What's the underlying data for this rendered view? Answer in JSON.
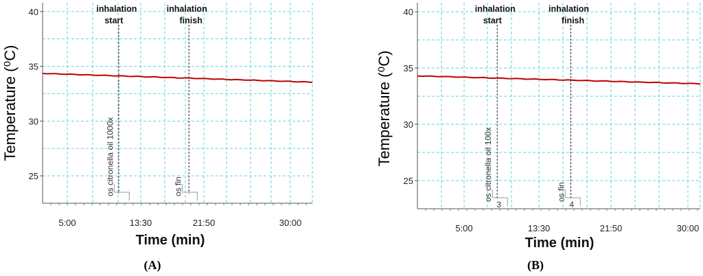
{
  "chart_data": [
    {
      "type": "line",
      "panel_label": "(A)",
      "xlabel": "Time (min)",
      "ylabel": "Temperature (⁰C)",
      "x_ticks": [
        "5:00",
        "13:30",
        "21:50",
        "30:00"
      ],
      "y_ticks": [
        25,
        30,
        35,
        40
      ],
      "ylim": [
        22.5,
        40.8
      ],
      "grid": true,
      "series": [
        {
          "color": "#c00000",
          "x_min": [
            0,
            36.5
          ],
          "y": [
            34.35,
            33.55
          ]
        }
      ],
      "annotations": [
        {
          "text_lines": [
            "inhalation",
            "start"
          ],
          "x_min": 10.3
        },
        {
          "text_lines": [
            "inhalation",
            "finish"
          ],
          "x_min": 19.8
        }
      ],
      "markers": [
        {
          "text": "os citronella oil 1000x",
          "x_min": 9.5
        },
        {
          "text": "os fin",
          "x_min": 18.7
        }
      ]
    },
    {
      "type": "line",
      "panel_label": "(B)",
      "xlabel": "Time (min)",
      "ylabel": "Temperature (⁰C)",
      "x_ticks": [
        "5:00",
        "13:30",
        "21:50",
        "30:00"
      ],
      "y_ticks": [
        25,
        30,
        35,
        40
      ],
      "ylim": [
        22.5,
        40.8
      ],
      "grid": true,
      "series": [
        {
          "color": "#c00000",
          "x_min": [
            0,
            36.5
          ],
          "y": [
            34.3,
            33.6
          ]
        }
      ],
      "annotations": [
        {
          "text_lines": [
            "inhalation",
            "start"
          ],
          "x_min": 10.3
        },
        {
          "text_lines": [
            "inhalation",
            "finish"
          ],
          "x_min": 19.8
        }
      ],
      "markers": [
        {
          "text": "os citronella oil 100x",
          "x_min": 9.5,
          "number": "3"
        },
        {
          "text": "os fin",
          "x_min": 18.9,
          "number": "4"
        }
      ]
    }
  ]
}
